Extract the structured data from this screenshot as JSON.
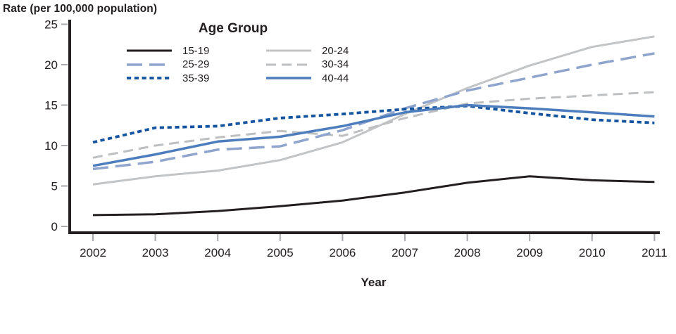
{
  "chart_data": {
    "type": "line",
    "y_axis_title": "Rate (per 100,000 population)",
    "x_axis_title": "Year",
    "legend_title": "Age Group",
    "x": [
      2002,
      2003,
      2004,
      2005,
      2006,
      2007,
      2008,
      2009,
      2010,
      2011
    ],
    "ylim": [
      0,
      25
    ],
    "yticks": [
      0,
      5,
      10,
      15,
      20,
      25
    ],
    "grid": false,
    "legend_position": "top-center-inside",
    "axis_color": "#231F20",
    "tick_color": "#A7A9AC",
    "series": [
      {
        "name": "15-19",
        "color": "#231F20",
        "style": "solid",
        "width": 3.0,
        "values": [
          1.4,
          1.5,
          1.9,
          2.5,
          3.2,
          4.2,
          5.4,
          6.2,
          5.7,
          5.5
        ]
      },
      {
        "name": "20-24",
        "color": "#C2C4C6",
        "style": "solid",
        "width": 3.0,
        "values": [
          5.2,
          6.2,
          6.9,
          8.2,
          10.4,
          13.9,
          17.1,
          19.9,
          22.2,
          23.5
        ]
      },
      {
        "name": "25-29",
        "color": "#8FA5CE",
        "style": "long-dash",
        "width": 3.5,
        "values": [
          7.1,
          8.0,
          9.5,
          9.9,
          11.9,
          14.6,
          16.8,
          18.4,
          20.0,
          21.4
        ]
      },
      {
        "name": "30-34",
        "color": "#BDBFC1",
        "style": "dash",
        "width": 3.0,
        "values": [
          8.5,
          10.0,
          11.0,
          11.8,
          11.2,
          13.4,
          15.2,
          15.8,
          16.2,
          16.6
        ]
      },
      {
        "name": "35-39",
        "color": "#15549E",
        "style": "dotted",
        "width": 3.8,
        "values": [
          10.4,
          12.2,
          12.4,
          13.4,
          13.9,
          14.5,
          14.9,
          14.0,
          13.2,
          12.8
        ]
      },
      {
        "name": "40-44",
        "color": "#4D7DBC",
        "style": "solid",
        "width": 3.5,
        "values": [
          7.5,
          8.9,
          10.5,
          11.1,
          12.4,
          14.1,
          15.0,
          14.6,
          14.1,
          13.6
        ]
      }
    ],
    "legend_columns": [
      [
        "15-19",
        "25-29",
        "35-39"
      ],
      [
        "20-24",
        "30-34",
        "40-44"
      ]
    ]
  }
}
